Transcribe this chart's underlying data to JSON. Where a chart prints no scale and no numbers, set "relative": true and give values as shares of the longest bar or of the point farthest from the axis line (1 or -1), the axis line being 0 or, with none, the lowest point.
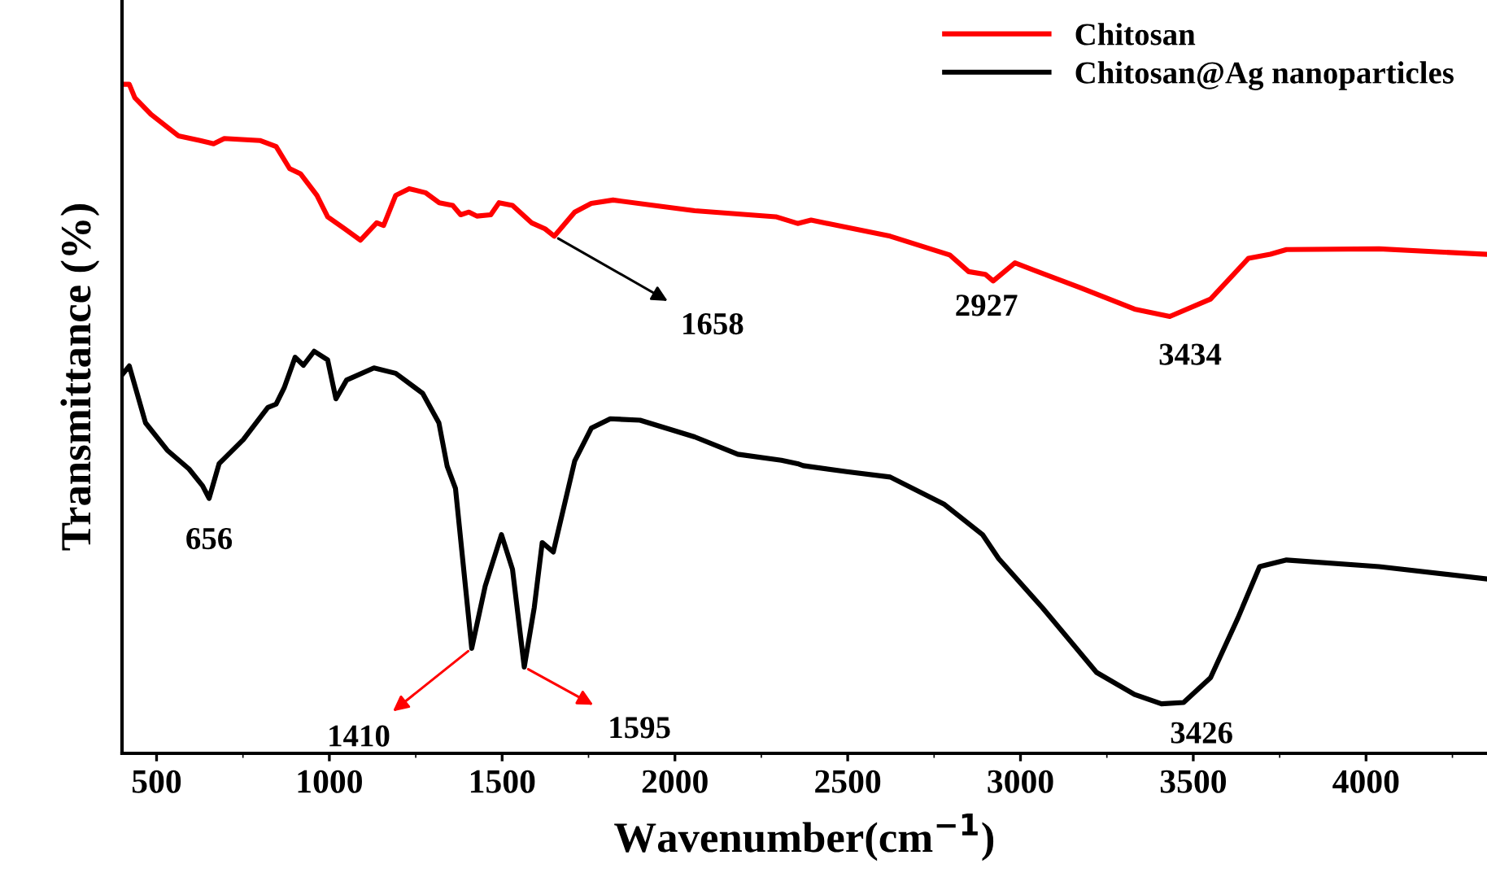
{
  "chart_data": {
    "type": "line",
    "relative": true,
    "xlabel": "Wavenumber(cm$^{−1}$)",
    "ylabel": "Transmittance (%)",
    "xlim": [
      400,
      4350
    ],
    "xticks": [
      500,
      1000,
      1500,
      2000,
      2500,
      3000,
      3500,
      4000
    ],
    "tick_labels": "x",
    "legend": "top right",
    "grid": false,
    "series": [
      {
        "name": "Chitosan",
        "color": "#ff0000",
        "x": [
          404,
          421,
          437,
          484,
          563,
          626,
          665,
          696,
          799,
          846,
          885,
          917,
          964,
          995,
          1042,
          1090,
          1137,
          1157,
          1192,
          1231,
          1278,
          1318,
          1357,
          1380,
          1404,
          1427,
          1467,
          1491,
          1530,
          1585,
          1624,
          1651,
          1710,
          1758,
          1821,
          2057,
          2292,
          2355,
          2394,
          2623,
          2795,
          2850,
          2898,
          2921,
          2984,
          3173,
          3330,
          3432,
          3550,
          3660,
          3723,
          3770,
          4038,
          4345
        ],
        "values": [
          1.0,
          1.0,
          0.98,
          0.955,
          0.923,
          0.916,
          0.911,
          0.919,
          0.916,
          0.907,
          0.874,
          0.866,
          0.834,
          0.802,
          0.785,
          0.767,
          0.793,
          0.789,
          0.834,
          0.844,
          0.838,
          0.823,
          0.819,
          0.805,
          0.809,
          0.803,
          0.805,
          0.823,
          0.819,
          0.793,
          0.784,
          0.773,
          0.809,
          0.822,
          0.827,
          0.811,
          0.802,
          0.792,
          0.797,
          0.773,
          0.745,
          0.72,
          0.716,
          0.706,
          0.733,
          0.696,
          0.664,
          0.653,
          0.679,
          0.74,
          0.746,
          0.753,
          0.754,
          0.746
        ]
      },
      {
        "name": "Chitosan@Ag nanoparticles",
        "color": "#000000",
        "x": [
          402,
          421,
          468,
          531,
          594,
          633,
          652,
          681,
          751,
          822,
          846,
          869,
          901,
          925,
          956,
          995,
          1019,
          1050,
          1129,
          1192,
          1270,
          1317,
          1341,
          1365,
          1412,
          1451,
          1498,
          1530,
          1564,
          1593,
          1616,
          1648,
          1710,
          1758,
          1813,
          1899,
          2057,
          2182,
          2308,
          2355,
          2371,
          2497,
          2623,
          2780,
          2890,
          2937,
          3063,
          3220,
          3330,
          3408,
          3472,
          3550,
          3629,
          3692,
          3770,
          4038,
          4345
        ],
        "values": [
          0.567,
          0.579,
          0.494,
          0.453,
          0.425,
          0.4,
          0.381,
          0.433,
          0.469,
          0.517,
          0.522,
          0.546,
          0.592,
          0.58,
          0.601,
          0.588,
          0.53,
          0.558,
          0.576,
          0.568,
          0.538,
          0.494,
          0.429,
          0.396,
          0.157,
          0.25,
          0.327,
          0.275,
          0.129,
          0.218,
          0.315,
          0.301,
          0.437,
          0.486,
          0.5,
          0.498,
          0.473,
          0.447,
          0.438,
          0.433,
          0.43,
          0.421,
          0.413,
          0.372,
          0.327,
          0.291,
          0.218,
          0.121,
          0.088,
          0.074,
          0.076,
          0.113,
          0.202,
          0.279,
          0.289,
          0.279,
          0.261
        ]
      }
    ],
    "annotations": [
      {
        "text": "1658",
        "x": 1651,
        "y": 0.773
      },
      {
        "text": "2927",
        "x": 2921,
        "y": 0.706
      },
      {
        "text": "3434",
        "x": 3432,
        "y": 0.653
      },
      {
        "text": "656",
        "x": 652,
        "y": 0.381
      },
      {
        "text": "1410",
        "x": 1412,
        "y": 0.157
      },
      {
        "text": "1595",
        "x": 1564,
        "y": 0.129
      },
      {
        "text": "3426",
        "x": 3426,
        "y": 0.074
      }
    ]
  }
}
